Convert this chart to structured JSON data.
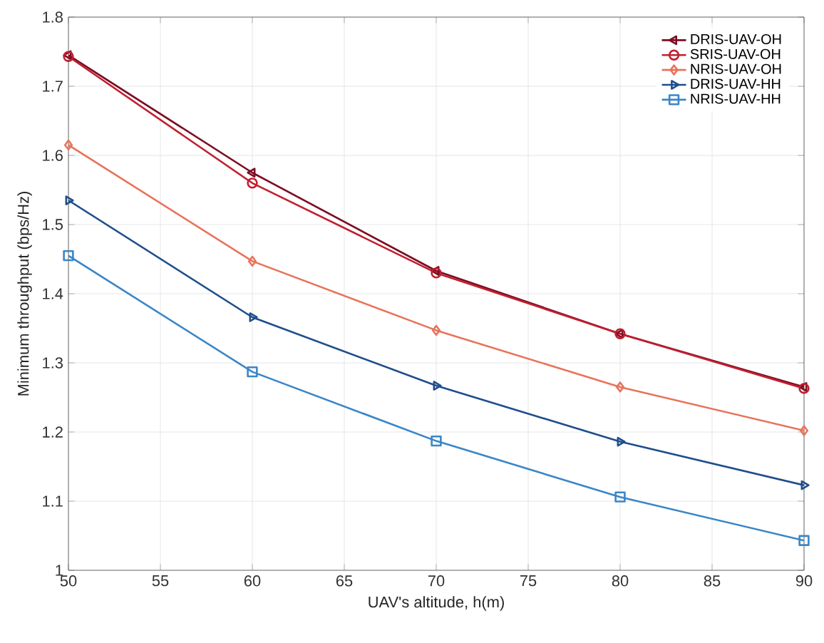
{
  "chart_data": {
    "type": "line",
    "xlabel": "UAV's altitude, h(m)",
    "ylabel": "Minimum throughput (bps/Hz)",
    "x": [
      50,
      60,
      70,
      80,
      90
    ],
    "series": [
      {
        "name": "DRIS-UAV-OH",
        "color": "#7b0c24",
        "marker": "triangle-left",
        "values": [
          1.745,
          1.575,
          1.433,
          1.342,
          1.265
        ]
      },
      {
        "name": "SRIS-UAV-OH",
        "color": "#c0202f",
        "marker": "circle",
        "values": [
          1.743,
          1.56,
          1.43,
          1.342,
          1.263
        ]
      },
      {
        "name": "NRIS-UAV-OH",
        "color": "#e8735a",
        "marker": "diamond",
        "values": [
          1.615,
          1.447,
          1.347,
          1.265,
          1.202
        ]
      },
      {
        "name": "DRIS-UAV-HH",
        "color": "#1f4e8c",
        "marker": "triangle-right",
        "values": [
          1.535,
          1.366,
          1.267,
          1.186,
          1.123
        ]
      },
      {
        "name": "NRIS-UAV-HH",
        "color": "#3a86c8",
        "marker": "square",
        "values": [
          1.455,
          1.287,
          1.187,
          1.106,
          1.043
        ]
      }
    ],
    "xlim": [
      50,
      90
    ],
    "xticks": [
      50,
      55,
      60,
      65,
      70,
      75,
      80,
      85,
      90
    ],
    "ylim": [
      1,
      1.8
    ],
    "yticks": [
      1,
      1.1,
      1.2,
      1.3,
      1.4,
      1.5,
      1.6,
      1.7,
      1.8
    ],
    "grid": true,
    "legend": "top right",
    "line_style": "solid"
  }
}
